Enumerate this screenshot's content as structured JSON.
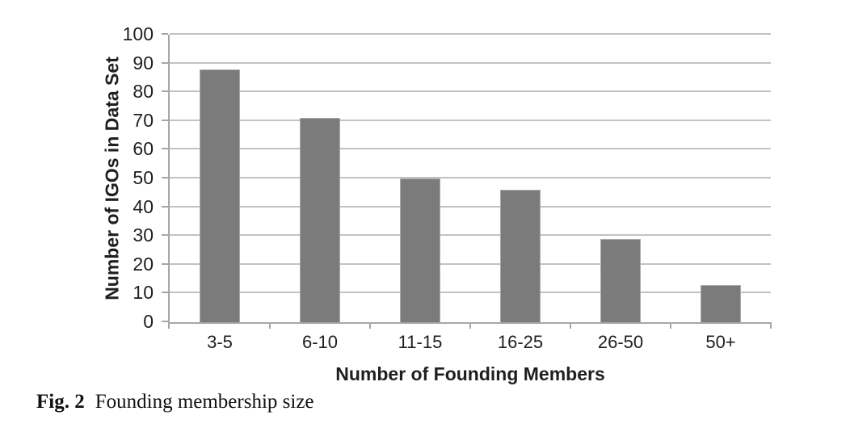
{
  "figure": {
    "caption_label": "Fig. 2",
    "caption_text": "Founding membership size"
  },
  "chart_data": {
    "type": "bar",
    "categories": [
      "3-5",
      "6-10",
      "11-15",
      "16-25",
      "26-50",
      "50+"
    ],
    "values": [
      88,
      71,
      50,
      46,
      29,
      13
    ],
    "title": "",
    "xlabel": "Number of Founding Members",
    "ylabel": "Number of IGOs in Data Set",
    "ylim": [
      0,
      100
    ],
    "ytick_step": 10,
    "yticks": [
      0,
      10,
      20,
      30,
      40,
      50,
      60,
      70,
      80,
      90,
      100
    ],
    "grid": true,
    "legend": false,
    "bar_color": "#7b7b7b",
    "gridline_color": "#c2c2c2",
    "axis_color": "#a6a6a6",
    "text_color": "#1f1f1f"
  }
}
